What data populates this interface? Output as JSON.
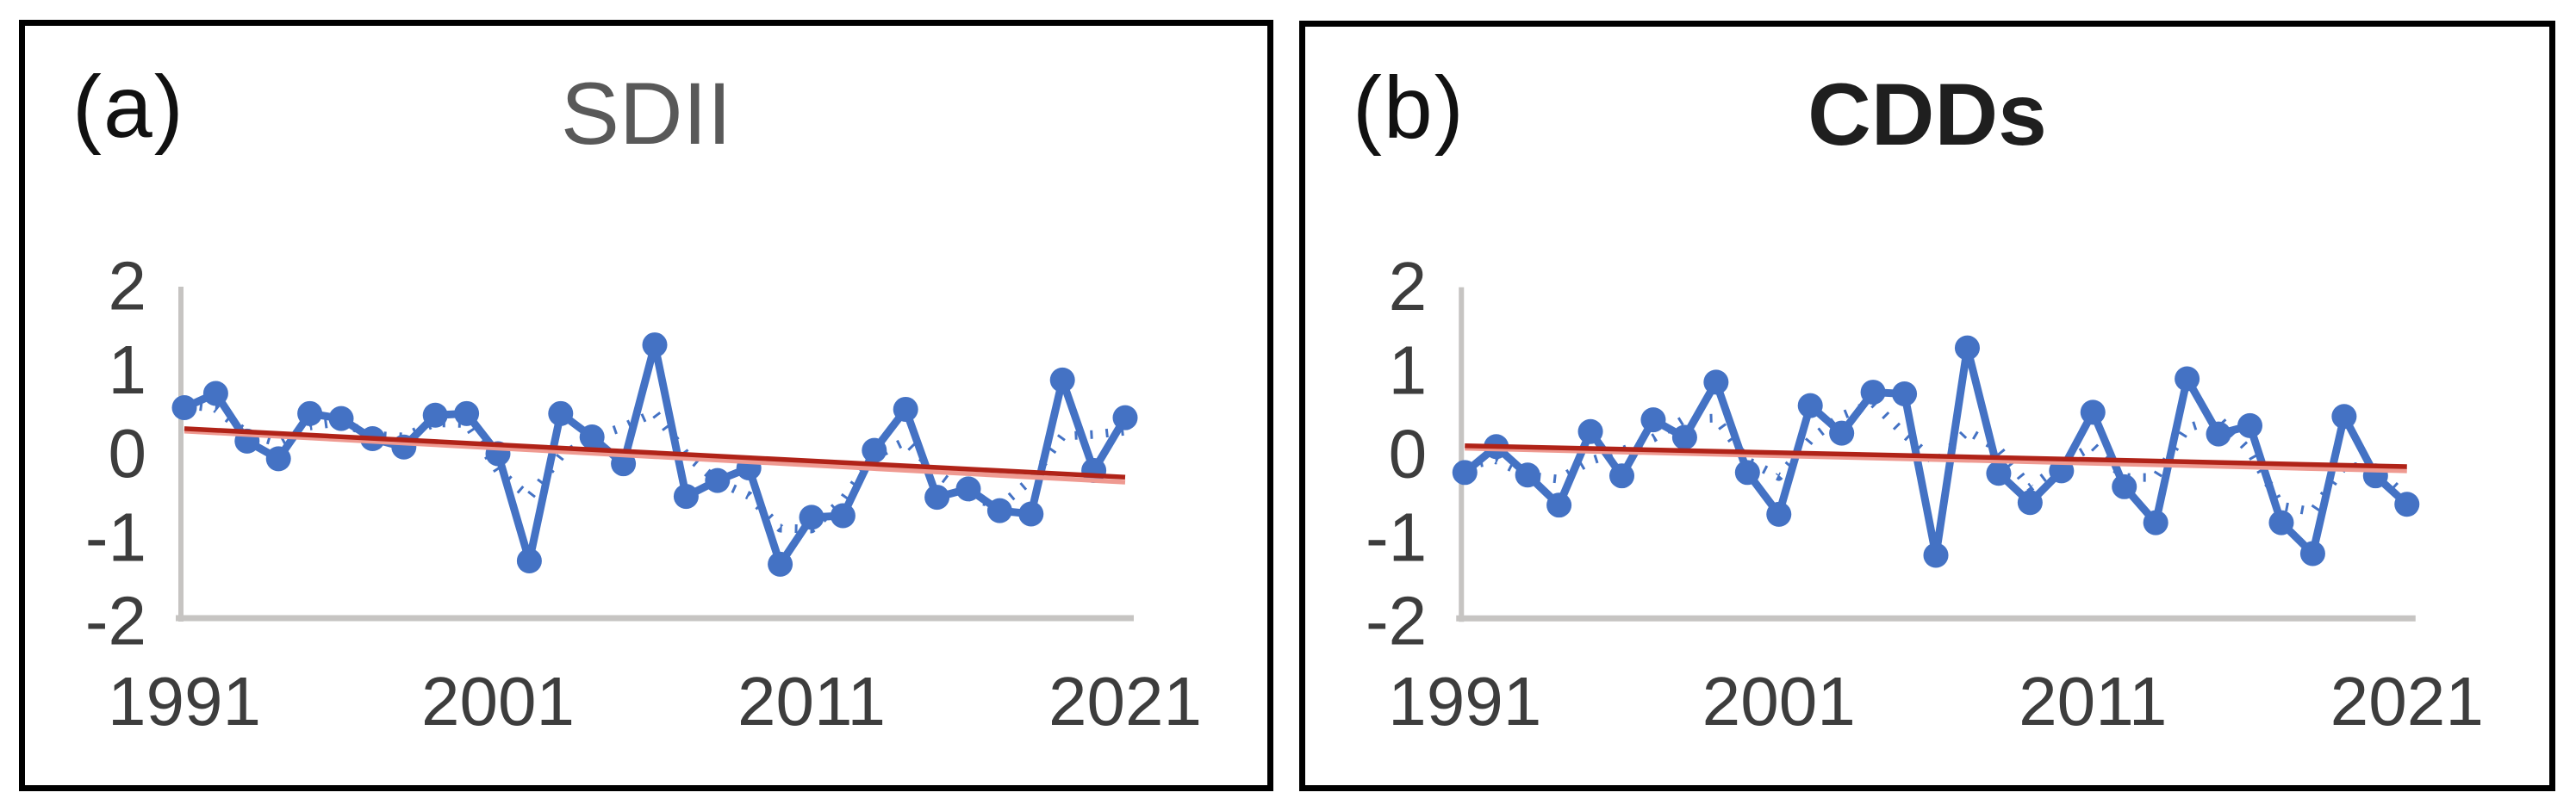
{
  "figure": {
    "background_color": "#ffffff",
    "panel_border_color": "#000000",
    "axis_line_color": "#c6c4c2",
    "tick_label_color": "#3d3d3d"
  },
  "chart_data": [
    {
      "type": "line",
      "panel_label": "(a)",
      "title": "SDII",
      "title_color": "#595959",
      "title_weight": "400",
      "x": [
        1991,
        1992,
        1993,
        1994,
        1995,
        1996,
        1997,
        1998,
        1999,
        2000,
        2001,
        2002,
        2003,
        2004,
        2005,
        2006,
        2007,
        2008,
        2009,
        2010,
        2011,
        2012,
        2013,
        2014,
        2015,
        2016,
        2017,
        2018,
        2019,
        2020,
        2021
      ],
      "x_tick_labels": [
        "1991",
        "2001",
        "2011",
        "2021"
      ],
      "x_tick_years": [
        1991,
        2001,
        2011,
        2021
      ],
      "y_tick_labels": [
        "2",
        "1",
        "0",
        "-1",
        "-2"
      ],
      "y_ticks": [
        2,
        1,
        0,
        -1,
        -2
      ],
      "ylim": [
        -2,
        2
      ],
      "grid": false,
      "legend": "none",
      "series": [
        {
          "name": "annual-anomaly",
          "style": "solid-with-markers",
          "color": "#4472c4",
          "values": [
            0.55,
            0.72,
            0.15,
            -0.06,
            0.48,
            0.42,
            0.18,
            0.08,
            0.46,
            0.48,
            0.0,
            -1.28,
            0.48,
            0.2,
            -0.12,
            1.3,
            -0.51,
            -0.32,
            -0.17,
            -1.32,
            -0.76,
            -0.74,
            0.04,
            0.53,
            -0.52,
            -0.42,
            -0.68,
            -0.72,
            0.88,
            -0.2,
            0.43
          ]
        },
        {
          "name": "smoothed-anomaly",
          "style": "dotted",
          "color": "#4472c4",
          "values": [
            0.59,
            0.54,
            0.24,
            0.13,
            0.33,
            0.38,
            0.22,
            0.2,
            0.37,
            0.36,
            -0.2,
            -0.52,
            -0.03,
            0.19,
            0.32,
            0.49,
            -0.01,
            -0.33,
            -0.5,
            -0.89,
            -0.9,
            -0.55,
            -0.03,
            0.15,
            -0.23,
            -0.51,
            -0.63,
            -0.31,
            0.21,
            0.23,
            0.27
          ]
        },
        {
          "name": "linear-trend-light",
          "style": "solid",
          "color": "#ef9a91",
          "endpoint_values": [
            0.27,
            -0.34
          ]
        },
        {
          "name": "linear-trend",
          "style": "solid",
          "color": "#b02318",
          "endpoint_values": [
            0.3,
            -0.28
          ]
        }
      ]
    },
    {
      "type": "line",
      "panel_label": "(b)",
      "title": "CDDs",
      "title_color": "#1f1f1f",
      "title_weight": "700",
      "x": [
        1991,
        1992,
        1993,
        1994,
        1995,
        1996,
        1997,
        1998,
        1999,
        2000,
        2001,
        2002,
        2003,
        2004,
        2005,
        2006,
        2007,
        2008,
        2009,
        2010,
        2011,
        2012,
        2013,
        2014,
        2015,
        2016,
        2017,
        2018,
        2019,
        2020,
        2021
      ],
      "x_tick_labels": [
        "1991",
        "2001",
        "2011",
        "2021"
      ],
      "x_tick_years": [
        1991,
        2001,
        2011,
        2021
      ],
      "y_tick_labels": [
        "2",
        "1",
        "0",
        "-1",
        "-2"
      ],
      "y_ticks": [
        2,
        1,
        0,
        -1,
        -2
      ],
      "ylim": [
        -2,
        2
      ],
      "grid": false,
      "legend": "none",
      "series": [
        {
          "name": "annual-anomaly",
          "style": "solid-with-markers",
          "color": "#4472c4",
          "values": [
            -0.22,
            0.09,
            -0.25,
            -0.61,
            0.27,
            -0.26,
            0.41,
            0.2,
            0.86,
            -0.22,
            -0.72,
            0.58,
            0.25,
            0.74,
            0.72,
            -1.21,
            1.27,
            -0.23,
            -0.58,
            -0.2,
            0.5,
            -0.39,
            -0.82,
            0.9,
            0.24,
            0.34,
            -0.82,
            -1.19,
            0.45,
            -0.26,
            -0.6
          ]
        },
        {
          "name": "smoothed-anomaly",
          "style": "dotted",
          "color": "#4472c4",
          "values": [
            -0.14,
            -0.07,
            -0.26,
            -0.3,
            -0.08,
            0.04,
            0.19,
            0.42,
            0.43,
            -0.08,
            -0.27,
            0.17,
            0.46,
            0.61,
            0.24,
            -0.11,
            0.28,
            0.06,
            -0.4,
            -0.12,
            0.1,
            -0.28,
            -0.28,
            0.31,
            0.43,
            0.03,
            -0.62,
            -0.69,
            -0.14,
            -0.17,
            -0.52
          ]
        },
        {
          "name": "linear-trend-light",
          "style": "solid",
          "color": "#ef9a91",
          "endpoint_values": [
            0.07,
            -0.2
          ]
        },
        {
          "name": "linear-trend",
          "style": "solid",
          "color": "#b02318",
          "endpoint_values": [
            0.1,
            -0.15
          ]
        }
      ]
    }
  ]
}
